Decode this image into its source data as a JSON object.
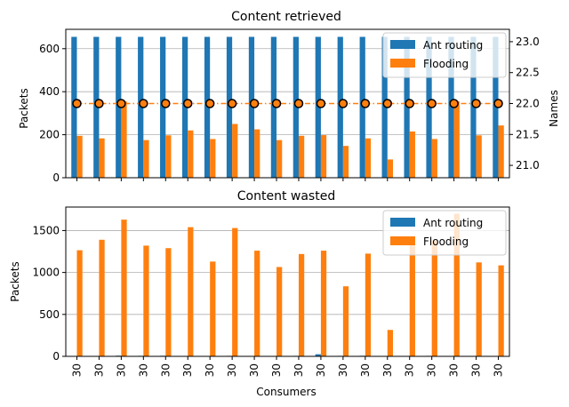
{
  "colors": {
    "ant_routing": "#1f77b4",
    "flooding": "#ff7f0e",
    "marker_fill": "#ff7f0e",
    "marker_edge": "#000000",
    "grid": "#b0b0b0"
  },
  "chart_data": [
    {
      "type": "bar",
      "title": "Content retrieved",
      "xlabel": "",
      "ylabel": "Packets",
      "ylim": [
        0,
        690
      ],
      "yticks": [
        0,
        200,
        400,
        600
      ],
      "grid": true,
      "legend": "top-right",
      "categories": [
        "30",
        "30",
        "30",
        "30",
        "30",
        "30",
        "30",
        "30",
        "30",
        "30",
        "30",
        "30",
        "30",
        "30",
        "30",
        "30",
        "30",
        "30",
        "30",
        "30"
      ],
      "series": [
        {
          "name": "Ant routing",
          "values": [
            655,
            655,
            655,
            655,
            655,
            655,
            655,
            655,
            655,
            655,
            655,
            655,
            655,
            655,
            655,
            655,
            655,
            655,
            655,
            655
          ]
        },
        {
          "name": "Flooding",
          "values": [
            195,
            183,
            355,
            175,
            197,
            220,
            180,
            250,
            225,
            175,
            195,
            198,
            148,
            183,
            85,
            215,
            180,
            355,
            197,
            243
          ]
        }
      ],
      "secondary_axis": {
        "ylabel": "Names",
        "ylim": [
          20.8,
          23.2
        ],
        "yticks": [
          21.0,
          21.5,
          22.0,
          22.5,
          23.0
        ],
        "type": "line",
        "style": "dash-dot with circle markers",
        "values": [
          22,
          22,
          22,
          22,
          22,
          22,
          22,
          22,
          22,
          22,
          22,
          22,
          22,
          22,
          22,
          22,
          22,
          22,
          22,
          22
        ]
      }
    },
    {
      "type": "bar",
      "title": "Content wasted",
      "xlabel": "Consumers",
      "ylabel": "Packets",
      "ylim": [
        0,
        1780
      ],
      "yticks": [
        0,
        500,
        1000,
        1500
      ],
      "grid": true,
      "legend": "top-right",
      "categories": [
        "30",
        "30",
        "30",
        "30",
        "30",
        "30",
        "30",
        "30",
        "30",
        "30",
        "30",
        "30",
        "30",
        "30",
        "30",
        "30",
        "30",
        "30",
        "30",
        "30"
      ],
      "series": [
        {
          "name": "Ant routing",
          "values": [
            5,
            3,
            8,
            6,
            7,
            5,
            4,
            6,
            4,
            5,
            6,
            25,
            6,
            7,
            5,
            5,
            6,
            5,
            4,
            5
          ]
        },
        {
          "name": "Flooding",
          "values": [
            1265,
            1390,
            1630,
            1320,
            1290,
            1540,
            1130,
            1530,
            1260,
            1065,
            1220,
            1260,
            835,
            1225,
            315,
            1340,
            1380,
            1700,
            1120,
            1085
          ]
        }
      ]
    }
  ]
}
